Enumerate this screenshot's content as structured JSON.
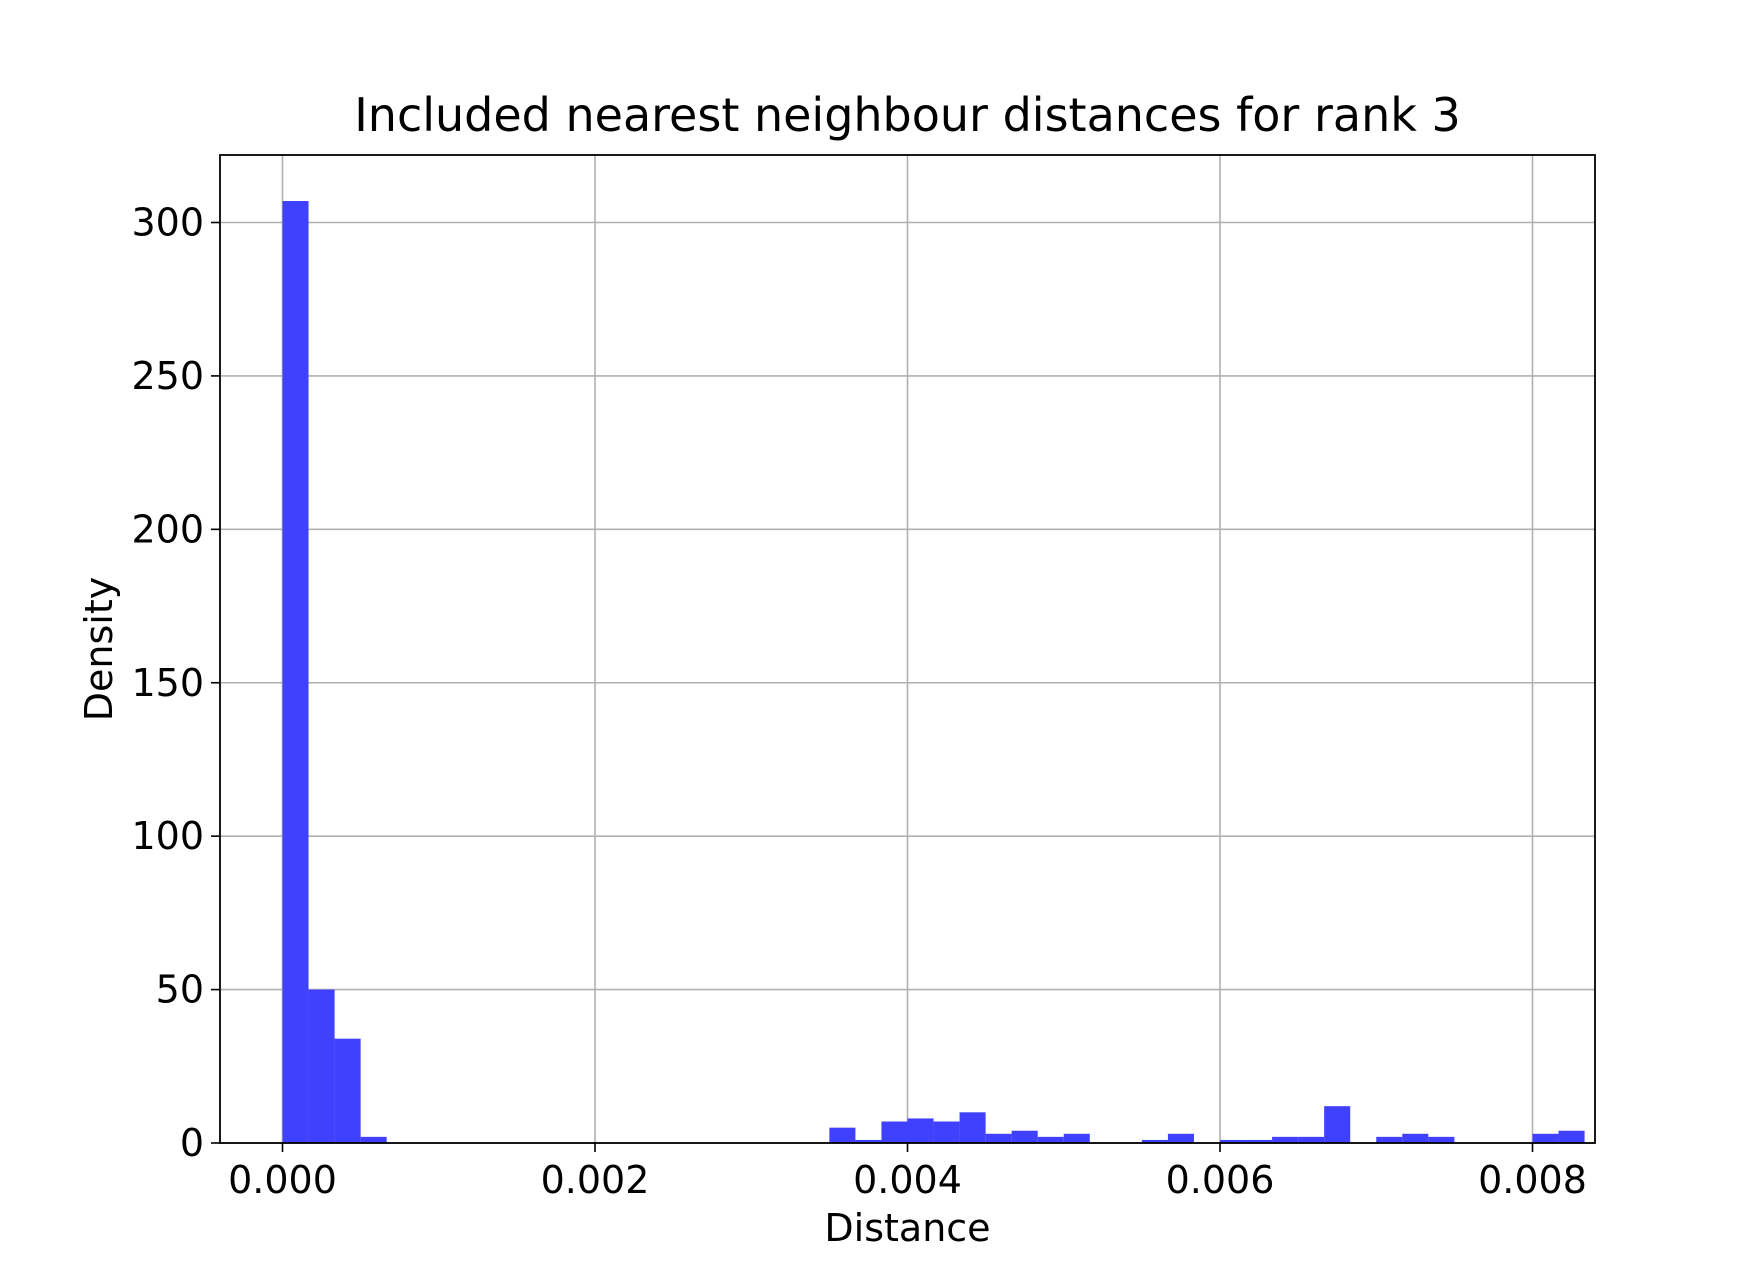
{
  "chart_data": {
    "type": "bar",
    "title": "Included nearest neighbour distances for rank 3",
    "xlabel": "Distance",
    "ylabel": "Density",
    "xlim": [
      -0.0004,
      0.0084
    ],
    "ylim": [
      0,
      322
    ],
    "grid": true,
    "bar_color": "#4040ff",
    "bin_width": 0.0001667,
    "x_ticks": [
      {
        "value": 0.0,
        "label": "0.000"
      },
      {
        "value": 0.002,
        "label": "0.002"
      },
      {
        "value": 0.004,
        "label": "0.004"
      },
      {
        "value": 0.006,
        "label": "0.006"
      },
      {
        "value": 0.008,
        "label": "0.008"
      }
    ],
    "y_ticks": [
      {
        "value": 0,
        "label": "0"
      },
      {
        "value": 50,
        "label": "50"
      },
      {
        "value": 100,
        "label": "100"
      },
      {
        "value": 150,
        "label": "150"
      },
      {
        "value": 200,
        "label": "200"
      },
      {
        "value": 250,
        "label": "250"
      },
      {
        "value": 300,
        "label": "300"
      }
    ],
    "bins": [
      {
        "x": 0.0,
        "value": 307
      },
      {
        "x": 0.0001667,
        "value": 50
      },
      {
        "x": 0.0003333,
        "value": 34
      },
      {
        "x": 0.0005,
        "value": 2
      },
      {
        "x": 0.0035,
        "value": 5
      },
      {
        "x": 0.0036667,
        "value": 1
      },
      {
        "x": 0.0038333,
        "value": 7
      },
      {
        "x": 0.004,
        "value": 8
      },
      {
        "x": 0.0041667,
        "value": 7
      },
      {
        "x": 0.0043333,
        "value": 10
      },
      {
        "x": 0.0045,
        "value": 3
      },
      {
        "x": 0.0046667,
        "value": 4
      },
      {
        "x": 0.0048333,
        "value": 2
      },
      {
        "x": 0.005,
        "value": 3
      },
      {
        "x": 0.0055,
        "value": 1
      },
      {
        "x": 0.0056667,
        "value": 3
      },
      {
        "x": 0.006,
        "value": 1
      },
      {
        "x": 0.0061667,
        "value": 1
      },
      {
        "x": 0.0063333,
        "value": 2
      },
      {
        "x": 0.0065,
        "value": 2
      },
      {
        "x": 0.0066667,
        "value": 12
      },
      {
        "x": 0.007,
        "value": 2
      },
      {
        "x": 0.0071667,
        "value": 3
      },
      {
        "x": 0.0073333,
        "value": 2
      },
      {
        "x": 0.008,
        "value": 3
      },
      {
        "x": 0.0081667,
        "value": 4
      }
    ]
  }
}
